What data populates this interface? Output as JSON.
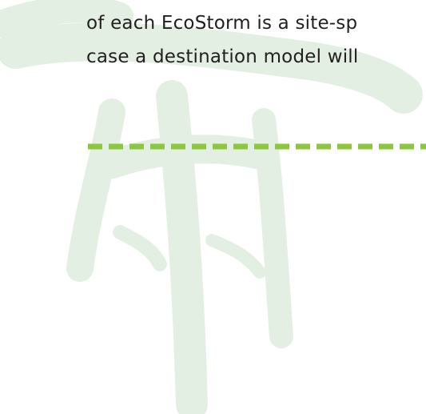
{
  "text": {
    "lines": [
      "of each EcoStorm is a site-sp",
      "case a destination model will"
    ]
  }
}
